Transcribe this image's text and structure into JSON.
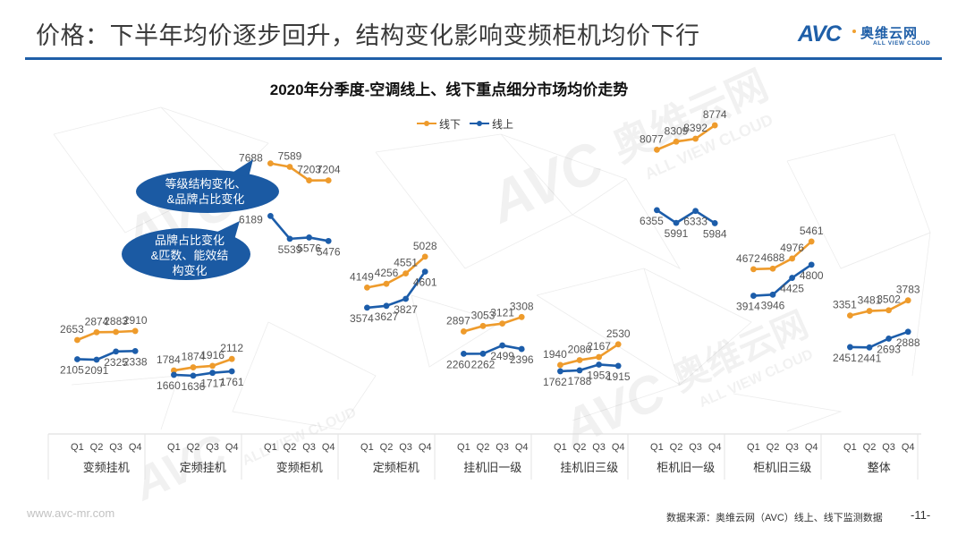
{
  "header": {
    "title": "价格：下半年均价逐步回升，结构变化影响变频柜机均价下行"
  },
  "logo": {
    "mark": "AVC",
    "name_cn": "奥维云网",
    "name_en": "ALL VIEW CLOUD"
  },
  "colors": {
    "accent": "#1f5fa8",
    "offline": "#ee9b2c",
    "online": "#1c5daa",
    "callout": "#1b5aa3"
  },
  "chart_data": {
    "type": "line",
    "title": "2020年分季度-空调线上、线下重点细分市场均价走势",
    "xlabel": "",
    "ylabel": "",
    "ylim": [
      0,
      10000
    ],
    "grid": false,
    "legend": {
      "position": "top-center"
    },
    "quarters": [
      "Q1",
      "Q2",
      "Q3",
      "Q4"
    ],
    "categories": [
      "变频挂机",
      "定频挂机",
      "变频柜机",
      "定频柜机",
      "挂机旧一级",
      "挂机旧三级",
      "柜机旧一级",
      "柜机旧三级",
      "整体"
    ],
    "series": [
      {
        "name": "线下",
        "color": "#ee9b2c",
        "values": [
          [
            2653,
            2874,
            2883,
            2910
          ],
          [
            1784,
            1874,
            1916,
            2112
          ],
          [
            7688,
            7589,
            7203,
            7204
          ],
          [
            4149,
            4256,
            4551,
            5028
          ],
          [
            2897,
            3053,
            3121,
            3308
          ],
          [
            1940,
            2080,
            2167,
            2530
          ],
          [
            8077,
            8309,
            8392,
            8774
          ],
          [
            4672,
            4688,
            4976,
            5461
          ],
          [
            3351,
            3481,
            3502,
            3783
          ]
        ]
      },
      {
        "name": "线上",
        "color": "#1c5daa",
        "values": [
          [
            2105,
            2091,
            2325,
            2338
          ],
          [
            1660,
            1636,
            1717,
            1761
          ],
          [
            6189,
            5539,
            5576,
            5476
          ],
          [
            3574,
            3627,
            3827,
            4601
          ],
          [
            2260,
            2262,
            2499,
            2396
          ],
          [
            1762,
            1788,
            1952,
            1915
          ],
          [
            6355,
            5991,
            6333,
            5984
          ],
          [
            3914,
            3946,
            4425,
            4800
          ],
          [
            2451,
            2441,
            2693,
            2888
          ]
        ]
      }
    ]
  },
  "callouts": [
    {
      "lines": [
        "等级结构变化、",
        "&品牌占比变化"
      ]
    },
    {
      "lines": [
        "品牌占比变化",
        "&匹数、能效结",
        "构变化"
      ]
    }
  ],
  "watermark": {
    "mark": "AVC",
    "name_cn": "奥维云网",
    "name_en": "ALL VIEW CLOUD"
  },
  "footer": {
    "website": "www.avc-mr.com",
    "source": "数据来源：奥维云网（AVC）线上、线下监测数据",
    "page": "-11-"
  }
}
